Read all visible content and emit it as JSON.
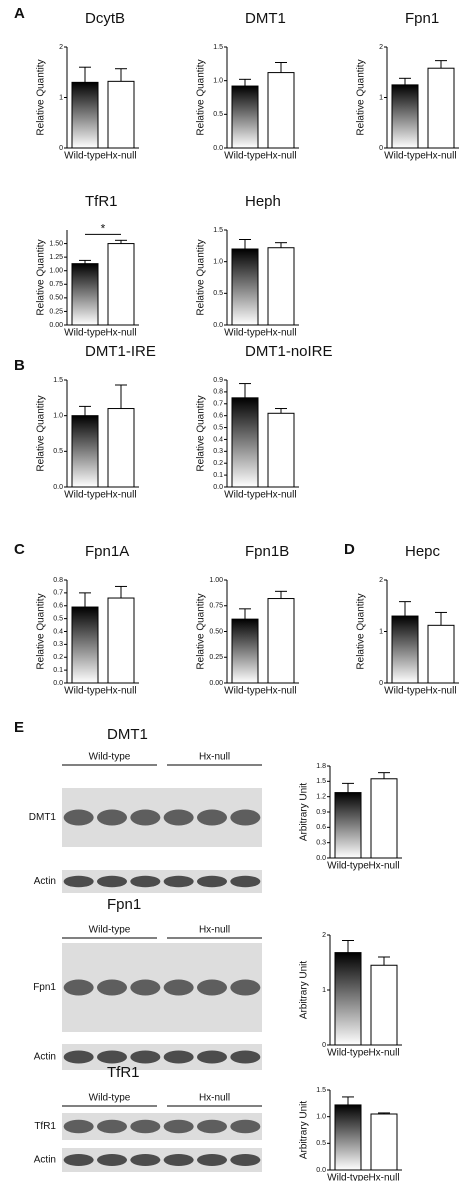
{
  "panels": [
    "A",
    "B",
    "C",
    "D",
    "E"
  ],
  "blots": [
    {
      "title": "DMT1",
      "groups": [
        "Wild-type",
        "Hx-null"
      ],
      "rows": [
        "DMT1",
        "Actin"
      ]
    },
    {
      "title": "Fpn1",
      "groups": [
        "Wild-type",
        "Hx-null"
      ],
      "rows": [
        "Fpn1",
        "Actin"
      ]
    },
    {
      "title": "TfR1",
      "groups": [
        "Wild-type",
        "Hx-null"
      ],
      "rows": [
        "TfR1",
        "Actin"
      ]
    }
  ],
  "chart_data": [
    {
      "type": "bar",
      "title": "DcytB",
      "ylabel": "Relative Quantity",
      "categories": [
        "Wild-type",
        "Hx-null"
      ],
      "values": [
        1.3,
        1.32
      ],
      "errors": [
        0.3,
        0.25
      ],
      "ylim": [
        0,
        2
      ],
      "yticks": [
        0,
        1,
        2
      ]
    },
    {
      "type": "bar",
      "title": "DMT1",
      "ylabel": "Relative Quantity",
      "categories": [
        "Wild-type",
        "Hx-null"
      ],
      "values": [
        0.92,
        1.12
      ],
      "errors": [
        0.1,
        0.15
      ],
      "ylim": [
        0,
        1.5
      ],
      "yticks": [
        {
          "value": 0,
          "label": "0.0"
        },
        0.5,
        {
          "value": 1,
          "label": "1.0"
        },
        1.5
      ]
    },
    {
      "type": "bar",
      "title": "Fpn1",
      "ylabel": "Relative Quantity",
      "categories": [
        "Wild-type",
        "Hx-null"
      ],
      "values": [
        1.25,
        1.58
      ],
      "errors": [
        0.13,
        0.15
      ],
      "ylim": [
        0,
        2
      ],
      "yticks": [
        0,
        1,
        2
      ]
    },
    {
      "type": "bar",
      "title": "TfR1",
      "ylabel": "Relative Quantity",
      "categories": [
        "Wild-type",
        "Hx-null"
      ],
      "values": [
        1.13,
        1.5
      ],
      "errors": [
        0.06,
        0.06
      ],
      "ylim": [
        0,
        1.75
      ],
      "yticks": [
        {
          "value": 0,
          "label": "0.00"
        },
        0.25,
        {
          "value": 0.5,
          "label": "0.50"
        },
        0.75,
        {
          "value": 1,
          "label": "1.00"
        },
        1.25,
        {
          "value": 1.5,
          "label": "1.50"
        }
      ],
      "annotation": "*"
    },
    {
      "type": "bar",
      "title": "Heph",
      "ylabel": "Relative Quantity",
      "categories": [
        "Wild-type",
        "Hx-null"
      ],
      "values": [
        1.2,
        1.22
      ],
      "errors": [
        0.15,
        0.08
      ],
      "ylim": [
        0,
        1.5
      ],
      "yticks": [
        {
          "value": 0,
          "label": "0.0"
        },
        0.5,
        {
          "value": 1,
          "label": "1.0"
        },
        1.5
      ]
    },
    {
      "type": "bar",
      "title": "DMT1-IRE",
      "ylabel": "Relative Quantity",
      "categories": [
        "Wild-type",
        "Hx-null"
      ],
      "values": [
        1.0,
        1.1
      ],
      "errors": [
        0.13,
        0.33
      ],
      "ylim": [
        0,
        1.5
      ],
      "yticks": [
        {
          "value": 0,
          "label": "0.0"
        },
        0.5,
        {
          "value": 1,
          "label": "1.0"
        },
        1.5
      ]
    },
    {
      "type": "bar",
      "title": "DMT1-noIRE",
      "ylabel": "Relative Quantity",
      "categories": [
        "Wild-type",
        "Hx-null"
      ],
      "values": [
        0.75,
        0.62
      ],
      "errors": [
        0.12,
        0.04
      ],
      "ylim": [
        0,
        0.9
      ],
      "yticks": [
        {
          "value": 0,
          "label": "0.0"
        },
        0.1,
        0.2,
        0.3,
        0.4,
        0.5,
        0.6,
        0.7,
        0.8,
        0.9
      ]
    },
    {
      "type": "bar",
      "title": "Fpn1A",
      "ylabel": "Relative Quantity",
      "categories": [
        "Wild-type",
        "Hx-null"
      ],
      "values": [
        0.59,
        0.66
      ],
      "errors": [
        0.11,
        0.09
      ],
      "ylim": [
        0,
        0.8
      ],
      "yticks": [
        {
          "value": 0,
          "label": "0.0"
        },
        0.1,
        0.2,
        0.3,
        0.4,
        0.5,
        0.6,
        0.7,
        0.8
      ]
    },
    {
      "type": "bar",
      "title": "Fpn1B",
      "ylabel": "Relative Quantity",
      "categories": [
        "Wild-type",
        "Hx-null"
      ],
      "values": [
        0.62,
        0.82
      ],
      "errors": [
        0.1,
        0.07
      ],
      "ylim": [
        0,
        1
      ],
      "yticks": [
        {
          "value": 0,
          "label": "0.00"
        },
        0.25,
        {
          "value": 0.5,
          "label": "0.50"
        },
        0.75,
        {
          "value": 1,
          "label": "1.00"
        }
      ]
    },
    {
      "type": "bar",
      "title": "Hepc",
      "ylabel": "Relative Quantity",
      "categories": [
        "Wild-type",
        "Hx-null"
      ],
      "values": [
        1.3,
        1.12
      ],
      "errors": [
        0.28,
        0.25
      ],
      "ylim": [
        0,
        2
      ],
      "yticks": [
        0,
        1,
        2
      ]
    },
    {
      "type": "bar",
      "ylabel": "Arbitrary Unit",
      "categories": [
        "Wild-type",
        "Hx-null"
      ],
      "values": [
        1.28,
        1.55
      ],
      "errors": [
        0.18,
        0.12
      ],
      "ylim": [
        0,
        1.8
      ],
      "yticks": [
        {
          "value": 0,
          "label": "0.0"
        },
        0.3,
        0.6,
        0.9,
        1.2,
        1.5,
        1.8
      ]
    },
    {
      "type": "bar",
      "ylabel": "Arbitrary Unit",
      "categories": [
        "Wild-type",
        "Hx-null"
      ],
      "values": [
        1.68,
        1.45
      ],
      "errors": [
        0.22,
        0.15
      ],
      "ylim": [
        0,
        2
      ],
      "yticks": [
        0,
        1,
        2
      ]
    },
    {
      "type": "bar",
      "ylabel": "Arbitrary Unit",
      "categories": [
        "Wild-type",
        "Hx-null"
      ],
      "values": [
        1.22,
        1.05
      ],
      "errors": [
        0.15,
        0.02
      ],
      "ylim": [
        0,
        1.5
      ],
      "yticks": [
        {
          "value": 0,
          "label": "0.0"
        },
        0.5,
        {
          "value": 1,
          "label": "1.0"
        },
        1.5
      ]
    }
  ]
}
